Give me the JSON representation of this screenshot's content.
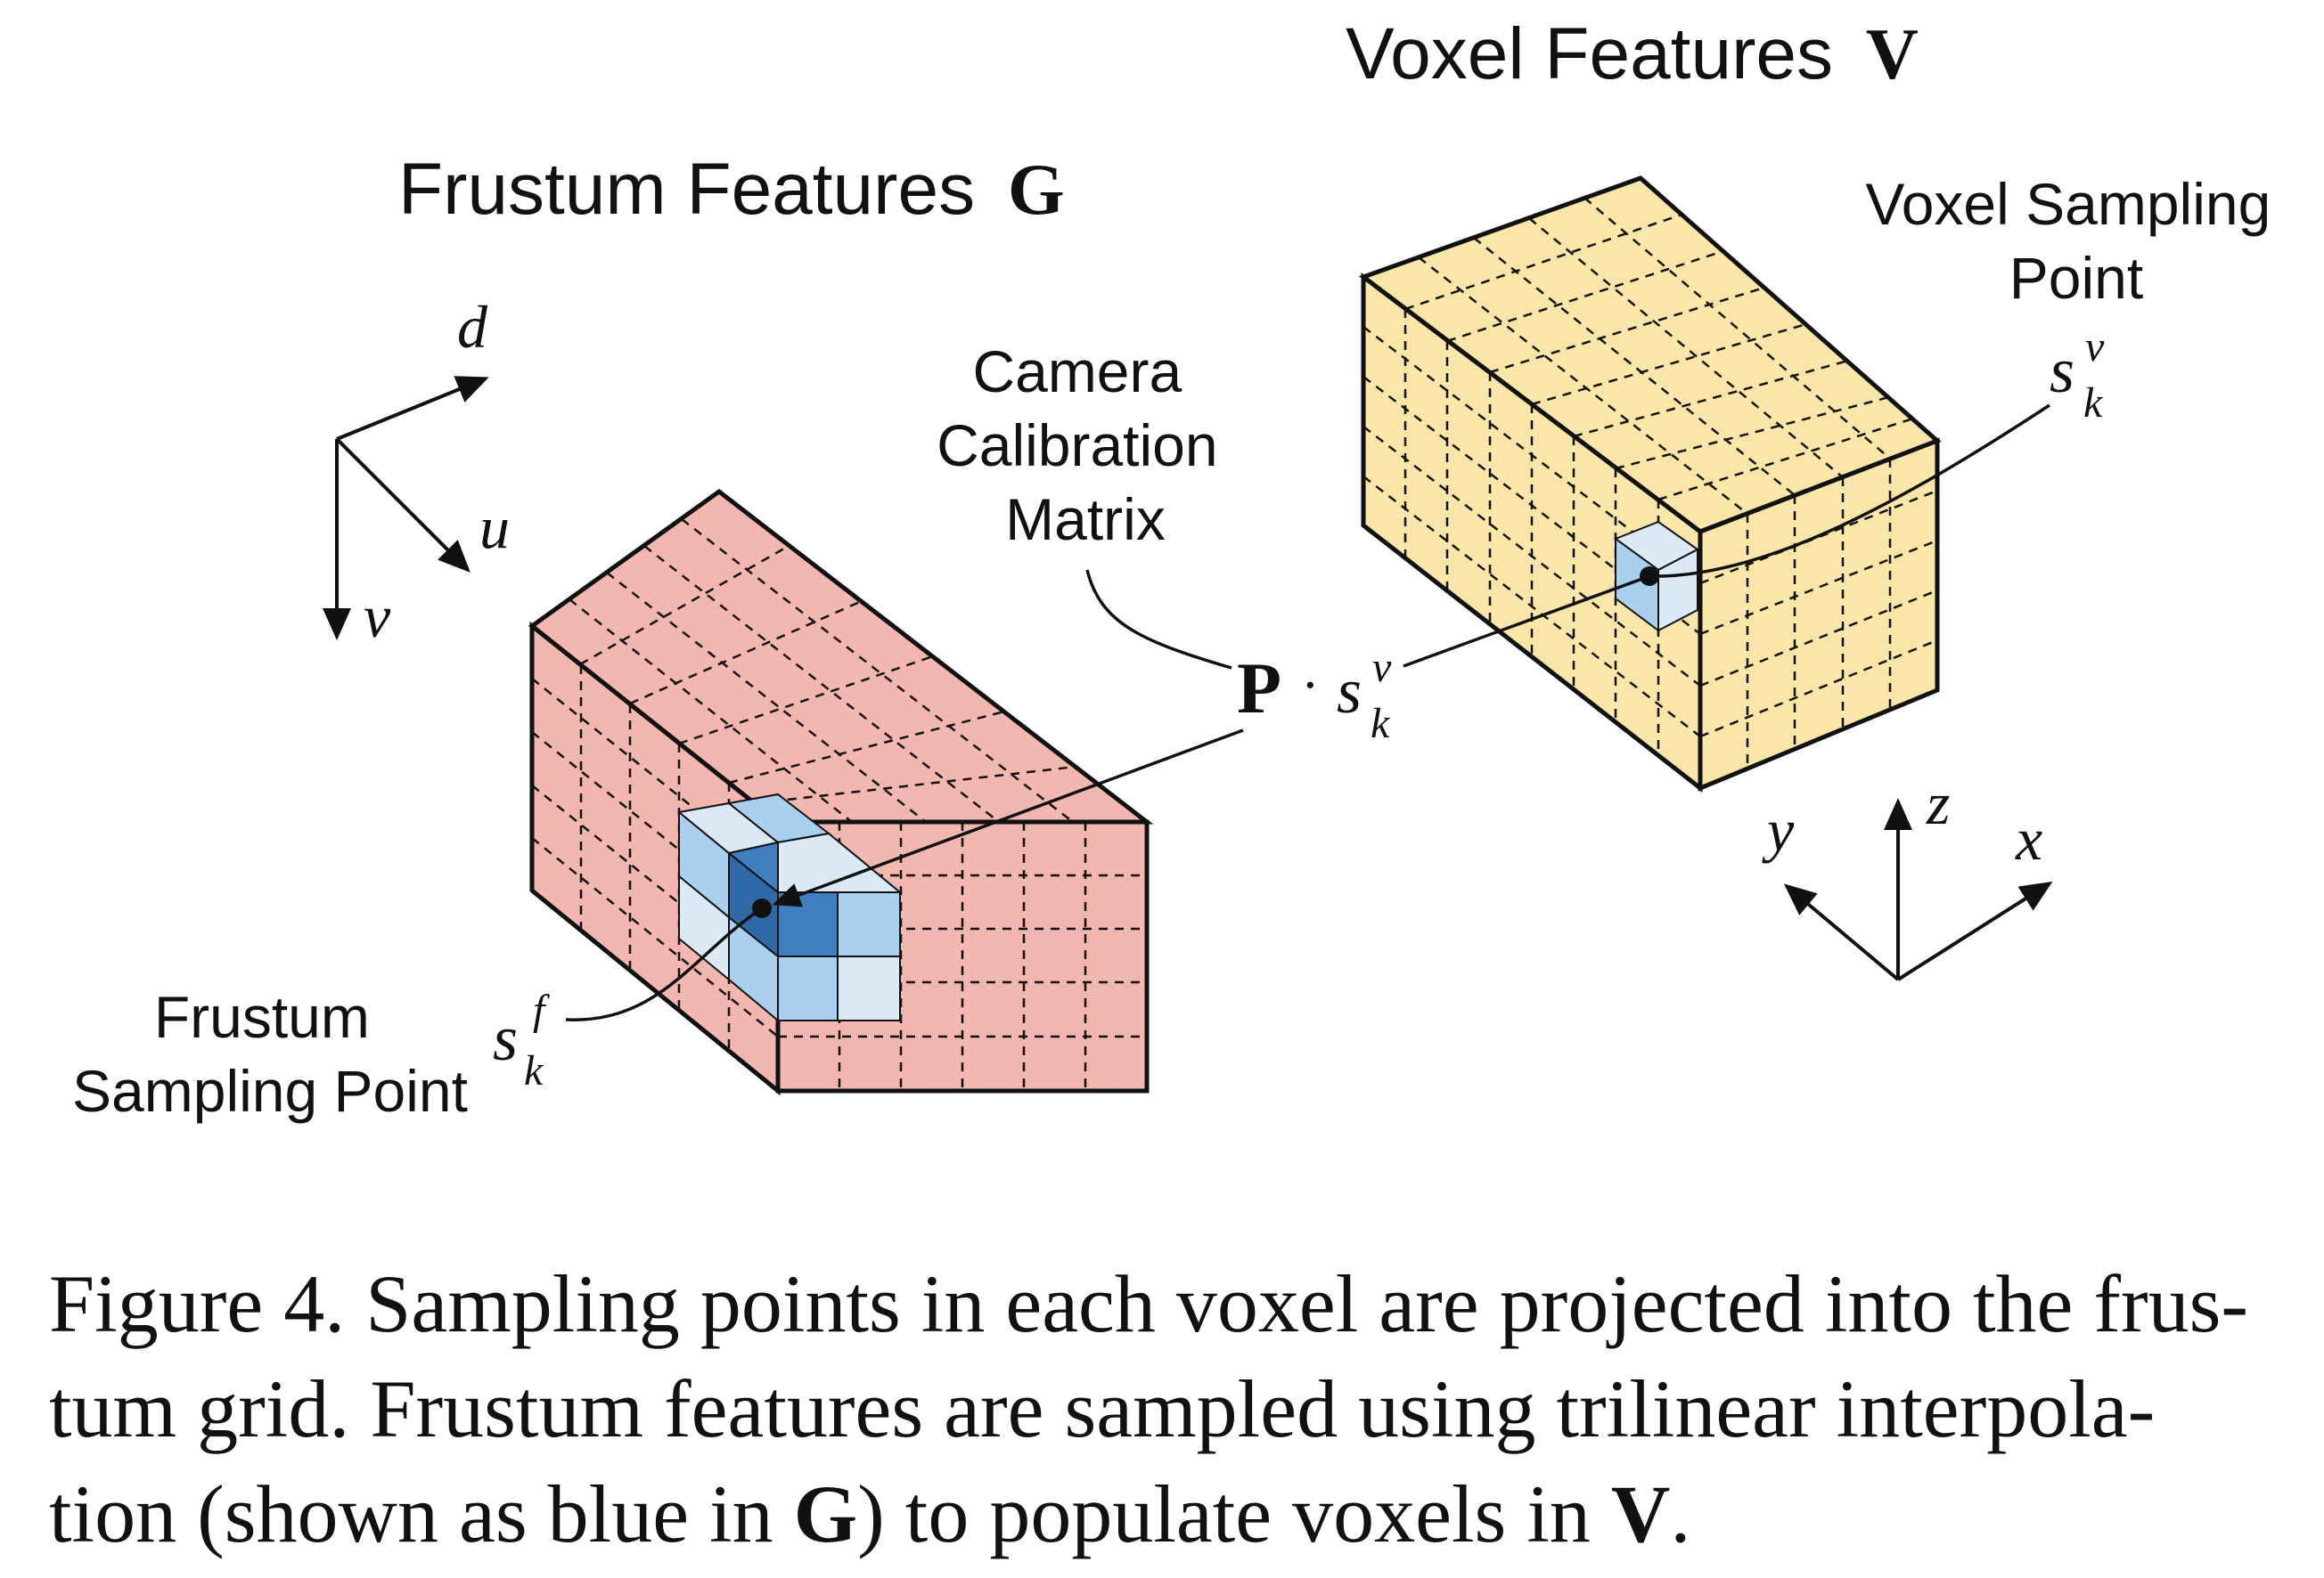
{
  "labels": {
    "frustum_title": "Frustum Features",
    "frustum_symbol": "G",
    "voxel_title": "Voxel Features",
    "voxel_symbol": "V",
    "camera_line1": "Camera",
    "camera_line2": "Calibration",
    "camera_line3": "Matrix",
    "voxel_sp_line1": "Voxel Sampling",
    "voxel_sp_line2": "Point",
    "frustum_sp_line1": "Frustum",
    "frustum_sp_line2": "Sampling Point"
  },
  "math": {
    "P": "P",
    "dot": "·",
    "s": "s",
    "sup_v": "v",
    "sub_k": "k",
    "sup_f": "f"
  },
  "axes": {
    "frustum": {
      "d": "d",
      "u": "u",
      "v": "v"
    },
    "voxel": {
      "x": "x",
      "y": "y",
      "z": "z"
    }
  },
  "caption": {
    "line1": "Figure 4. Sampling points in each voxel are projected into the frus-",
    "line2": "tum grid.  Frustum features are sampled using trilinear interpola-",
    "line3_a": "tion (shown as blue in ",
    "line3_b": "G",
    "line3_c": ") to populate voxels in ",
    "line3_d": "V",
    "line3_e": "."
  },
  "colors": {
    "frustum_fill": "#f2b8b0",
    "voxel_fill": "#f9e6a8",
    "blue_light": "#d9e9f5",
    "blue_mid": "#a9d0ee",
    "blue_dark": "#3f7fbf",
    "ink": "#111111"
  }
}
